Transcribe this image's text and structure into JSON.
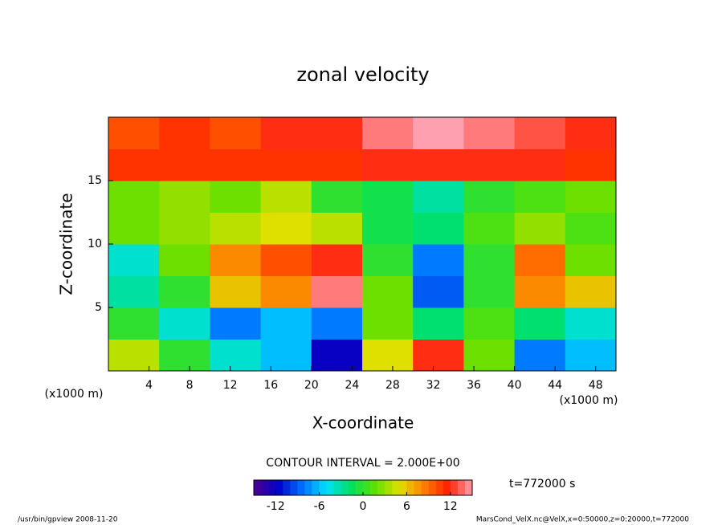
{
  "chart_data": {
    "type": "heatmap",
    "title": "zonal velocity",
    "x_label": "X-coordinate",
    "y_label": "Z-coordinate",
    "x_unit": "(x1000 m)",
    "y_unit": "(x1000 m)",
    "x": [
      2.5,
      7.5,
      12.5,
      17.5,
      22.5,
      27.5,
      32.5,
      37.5,
      42.5,
      47.5
    ],
    "y": [
      1.25,
      3.75,
      6.25,
      8.75,
      11.25,
      13.75,
      16.25,
      18.75
    ],
    "z": [
      [
        4,
        0,
        -4,
        -6,
        -12,
        5,
        12,
        2,
        -8,
        -6
      ],
      [
        0,
        -4,
        -8,
        -6,
        -8,
        2,
        -2,
        1,
        -2,
        -4
      ],
      [
        -3,
        0,
        6,
        8,
        14,
        2,
        -9,
        0,
        8,
        6
      ],
      [
        -4,
        2,
        8,
        10,
        12,
        0,
        -8,
        0,
        9,
        2
      ],
      [
        2,
        3,
        4,
        5,
        4,
        -1,
        -2,
        1,
        3,
        1
      ],
      [
        2,
        3,
        2,
        4,
        0,
        -1,
        -3,
        0,
        1,
        2
      ],
      [
        11,
        11,
        11,
        11,
        11,
        12,
        12,
        12,
        12,
        11
      ],
      [
        10,
        11,
        10,
        12,
        12,
        14,
        15,
        14,
        13,
        12
      ]
    ],
    "xlim": [
      0,
      50
    ],
    "ylim": [
      0,
      20
    ],
    "xticks": [
      4,
      8,
      12,
      16,
      20,
      24,
      28,
      32,
      36,
      40,
      44,
      48
    ],
    "yticks": [
      5,
      10,
      15
    ],
    "clim": [
      -15,
      15
    ],
    "cticks": [
      -12,
      -6,
      0,
      6,
      12
    ],
    "colormap": [
      "#500090",
      "#0000c8",
      "#0070ff",
      "#00e0ff",
      "#00e060",
      "#60e000",
      "#e0e000",
      "#ff8000",
      "#ff2000",
      "#ffa0b0"
    ],
    "contour_note": "CONTOUR INTERVAL = 2.000E+00",
    "time_label": "t=772000 s",
    "footer_left": "/usr/bin/gpview  2008-11-20",
    "footer_right": "MarsCond_VelX.nc@VelX,x=0:50000,z=0:20000,t=772000"
  }
}
